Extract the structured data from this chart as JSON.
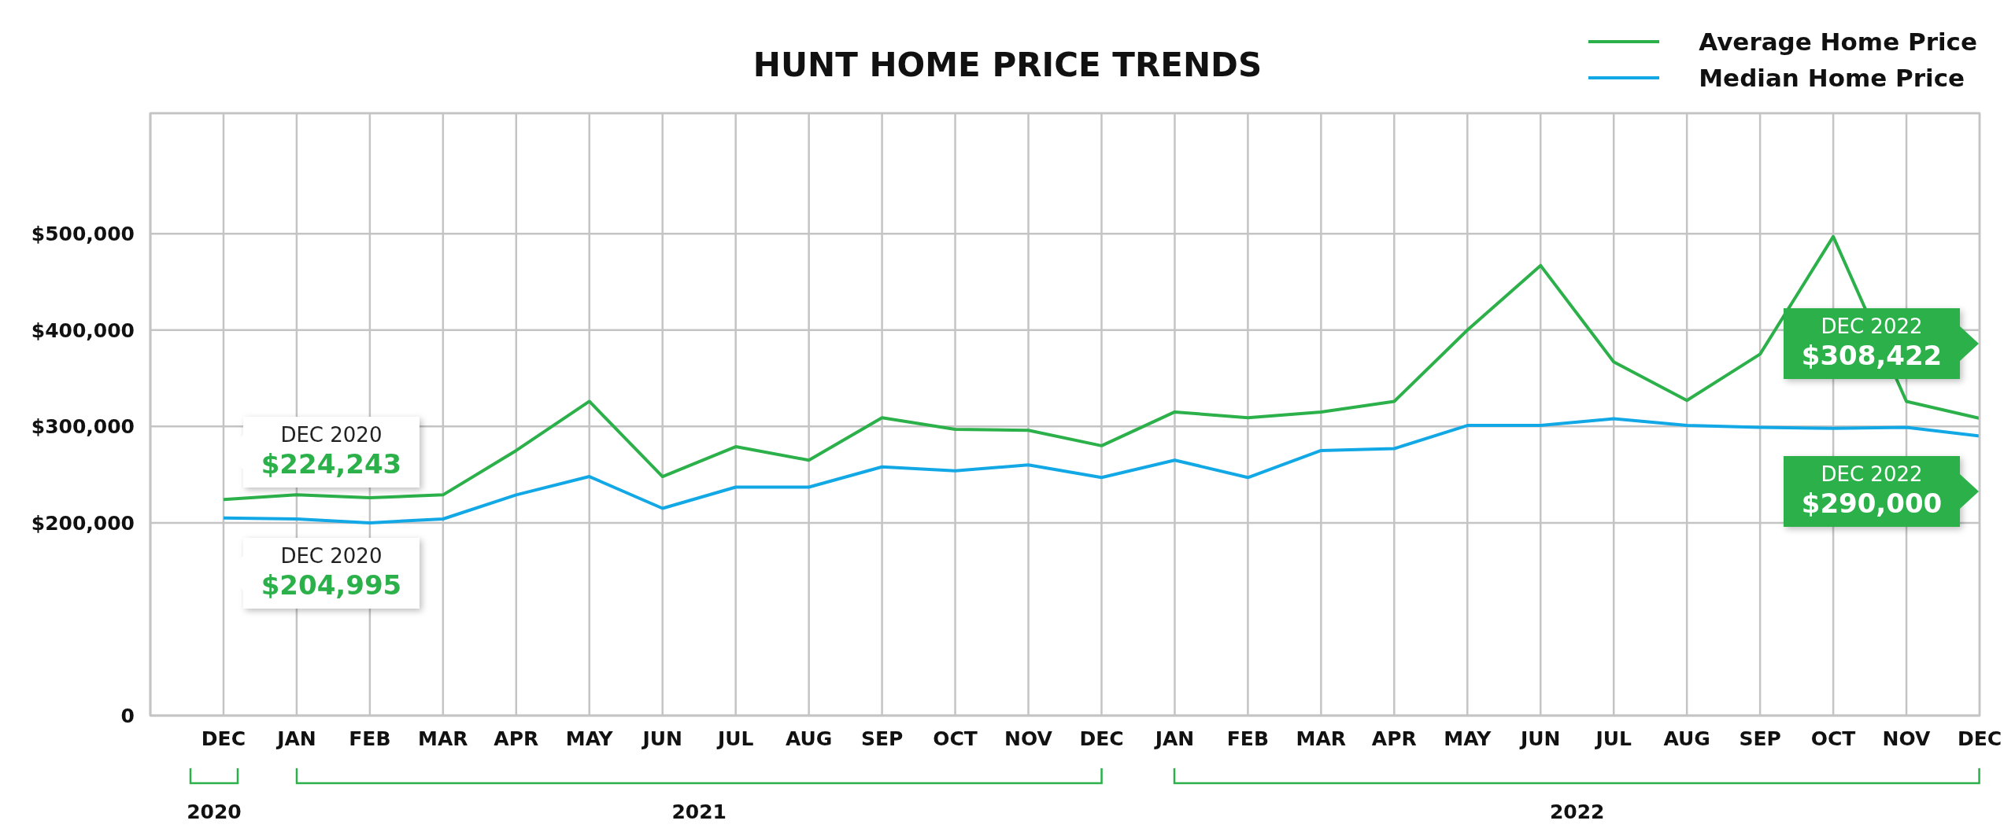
{
  "chart_data": {
    "type": "line",
    "title": "HUNT HOME PRICE TRENDS",
    "categories": [
      "DEC",
      "JAN",
      "FEB",
      "MAR",
      "APR",
      "MAY",
      "JUN",
      "JUL",
      "AUG",
      "SEP",
      "OCT",
      "NOV",
      "DEC",
      "JAN",
      "FEB",
      "MAR",
      "APR",
      "MAY",
      "JUN",
      "JUL",
      "AUG",
      "SEP",
      "OCT",
      "NOV",
      "DEC"
    ],
    "series": [
      {
        "name": "Average Home Price",
        "color": "#2bb04a",
        "values": [
          224243,
          229000,
          226000,
          229000,
          275000,
          326000,
          248000,
          279000,
          265000,
          309000,
          297000,
          296000,
          280000,
          315000,
          309000,
          315000,
          326000,
          400000,
          467000,
          367000,
          327000,
          375000,
          497000,
          326000,
          308422
        ],
        "value_labels": [
          "$224,243",
          null,
          null,
          null,
          null,
          null,
          null,
          null,
          null,
          null,
          null,
          null,
          null,
          null,
          null,
          null,
          null,
          null,
          null,
          null,
          null,
          null,
          null,
          null,
          "$308,422"
        ]
      },
      {
        "name": "Median Home Price",
        "color": "#12a8e6",
        "values": [
          204995,
          204000,
          200000,
          204000,
          229000,
          248000,
          215000,
          237000,
          237000,
          258000,
          254000,
          260000,
          247000,
          265000,
          247000,
          275000,
          277000,
          301000,
          301000,
          308000,
          301000,
          299000,
          298000,
          299000,
          290000
        ],
        "value_labels": [
          "$204,995",
          null,
          null,
          null,
          null,
          null,
          null,
          null,
          null,
          null,
          null,
          null,
          null,
          null,
          null,
          null,
          null,
          null,
          null,
          null,
          null,
          null,
          null,
          null,
          "$290,000"
        ]
      }
    ],
    "annotations": [
      "DEC 2020",
      "DEC 2022",
      "DEC 2020",
      "DEC 2022",
      "2020",
      "2021",
      "2022"
    ],
    "ylim": [
      0,
      625000
    ],
    "yticks": [
      0,
      {
        "value": 200000,
        "label": "$200,000"
      },
      {
        "value": 300000,
        "label": "$300,000"
      },
      {
        "value": 400000,
        "label": "$400,000"
      },
      {
        "value": 500000,
        "label": "$500,000"
      }
    ],
    "grid": true,
    "legend": "top right",
    "marker": "none",
    "line_style": "solid"
  }
}
